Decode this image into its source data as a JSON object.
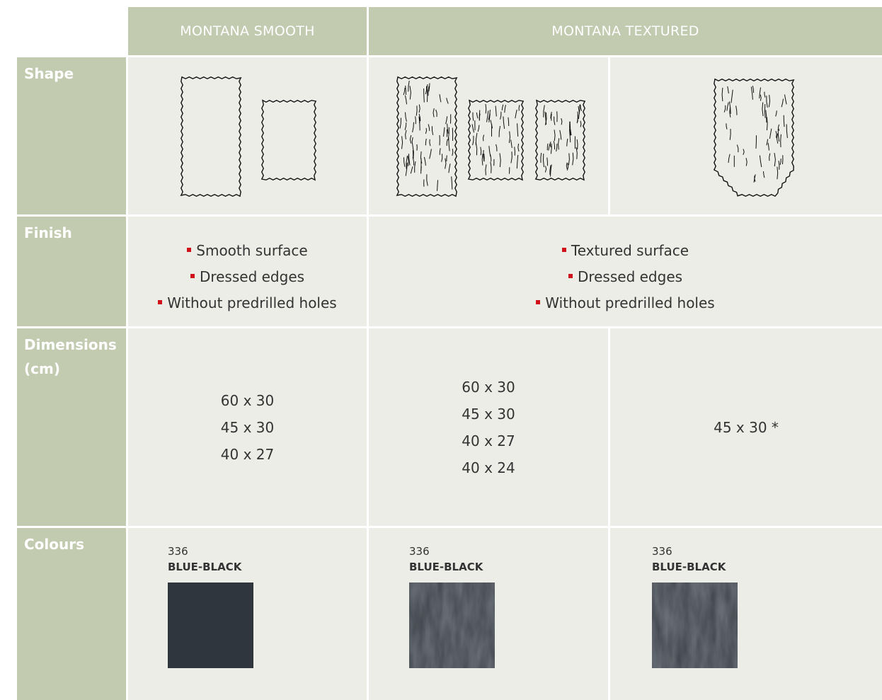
{
  "table": {
    "columns": [
      "MONTANA SMOOTH",
      "MONTANA TEXTURED"
    ],
    "row_labels": [
      "Shape",
      "Finish",
      "Dimensions (cm)",
      "Colours"
    ],
    "finish": [
      [
        "Smooth surface",
        "Dressed edges",
        "Without predrilled holes"
      ],
      [
        "Textured surface",
        "Dressed edges",
        "Without predrilled holes"
      ]
    ],
    "dimensions": [
      [
        "60 x 30",
        "45 x 30",
        "40 x 27"
      ],
      [
        "60 x 30",
        "45 x 30",
        "40 x 27",
        "40 x 24"
      ],
      [
        "45 x 30 *"
      ]
    ],
    "colours": [
      {
        "code": "336",
        "name": "BLUE-BLACK"
      },
      {
        "code": "336",
        "name": "BLUE-BLACK"
      },
      {
        "code": "336",
        "name": "BLUE-BLACK"
      }
    ]
  }
}
